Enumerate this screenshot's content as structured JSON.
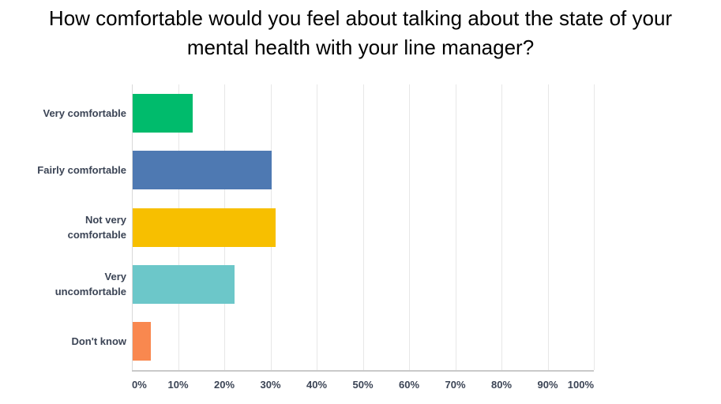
{
  "title": {
    "lines": [
      "How comfortable would you feel about talking about the state of your",
      "mental health with your line manager?"
    ],
    "full_text": "How comfortable would you feel about talking about the state of your mental health with your line manager?"
  },
  "chart_data": {
    "type": "bar",
    "orientation": "horizontal",
    "title": "How comfortable would you feel about talking about the state of your mental health with your line manager?",
    "categories": [
      "Very comfortable",
      "Fairly comfortable",
      "Not very comfortable",
      "Very uncomfortable",
      "Don't know"
    ],
    "values": [
      13,
      30,
      31,
      22,
      4
    ],
    "unit": "%",
    "colors": [
      "#00bb6c",
      "#4e79b2",
      "#f7bf00",
      "#6cc7c9",
      "#f9884f"
    ],
    "x_ticks": [
      "0%",
      "10%",
      "20%",
      "30%",
      "40%",
      "50%",
      "60%",
      "70%",
      "80%",
      "90%",
      "100%"
    ],
    "xlim": [
      0,
      100
    ],
    "xlabel": "",
    "ylabel": "",
    "grid": "vertical-only",
    "legend": "none",
    "gridline_color": "#e7e7e7",
    "axis_line_color": "#c9c9c9",
    "label_color": "#3b4455"
  }
}
